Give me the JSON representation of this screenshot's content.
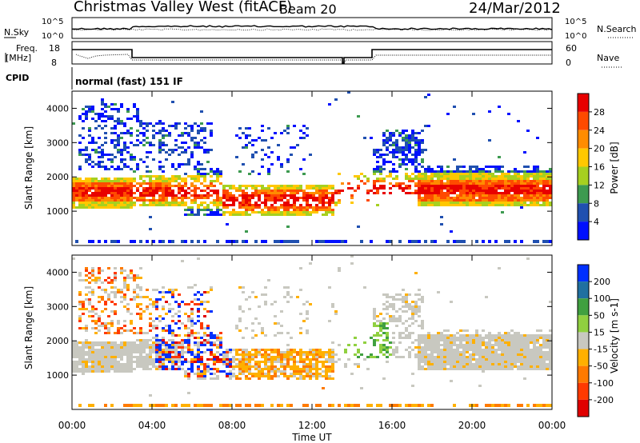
{
  "header": {
    "station": "Christmas Valley West (fitACF)",
    "beam": "Beam 20",
    "date": "24/Mar/2012"
  },
  "panels": {
    "nsky_label": "N.Sky",
    "nsky_ticks": [
      "10^5",
      "10^0"
    ],
    "nsearch_label": "N.Search",
    "nsearch_ticks": [
      "10^5",
      "10^0"
    ],
    "freq_label_1": "Freq.",
    "freq_label_2": "[MHz]",
    "freq_ticks": [
      "18",
      "8"
    ],
    "nave_label": "Nave",
    "nave_ticks": [
      "60",
      "0"
    ],
    "cpid_label": "CPID",
    "cpid_value": "normal (fast) 151 IF"
  },
  "chart_data": [
    {
      "type": "heatmap",
      "name": "power",
      "ylabel": "Slant Range [km]",
      "yticks": [
        "4000",
        "3000",
        "2000",
        "1000"
      ],
      "colorbar_label": "Power [dB]",
      "colorbar_ticks": [
        "28",
        "24",
        "20",
        "16",
        "12",
        "8",
        "4"
      ],
      "colorbar_colors": [
        "#e80000",
        "#ff4a00",
        "#ff8c00",
        "#ffc800",
        "#a6d020",
        "#3d9a50",
        "#2050b0",
        "#0010ff"
      ]
    },
    {
      "type": "heatmap",
      "name": "velocity",
      "ylabel": "Slant Range [km]",
      "yticks": [
        "4000",
        "3000",
        "2000",
        "1000"
      ],
      "colorbar_label": "Velocity [m s-1]",
      "colorbar_ticks": [
        "200",
        "100",
        "50",
        "15",
        "-15",
        "-50",
        "-100",
        "-200"
      ],
      "colorbar_colors": [
        "#0030ff",
        "#2070a0",
        "#40a040",
        "#90d040",
        "#c8c8c0",
        "#ffb000",
        "#ff7a00",
        "#ff3a00",
        "#e00000"
      ]
    }
  ],
  "xaxis": {
    "label": "Time UT",
    "ticks": [
      "00:00",
      "04:00",
      "08:00",
      "12:00",
      "16:00",
      "20:00",
      "00:00"
    ]
  }
}
